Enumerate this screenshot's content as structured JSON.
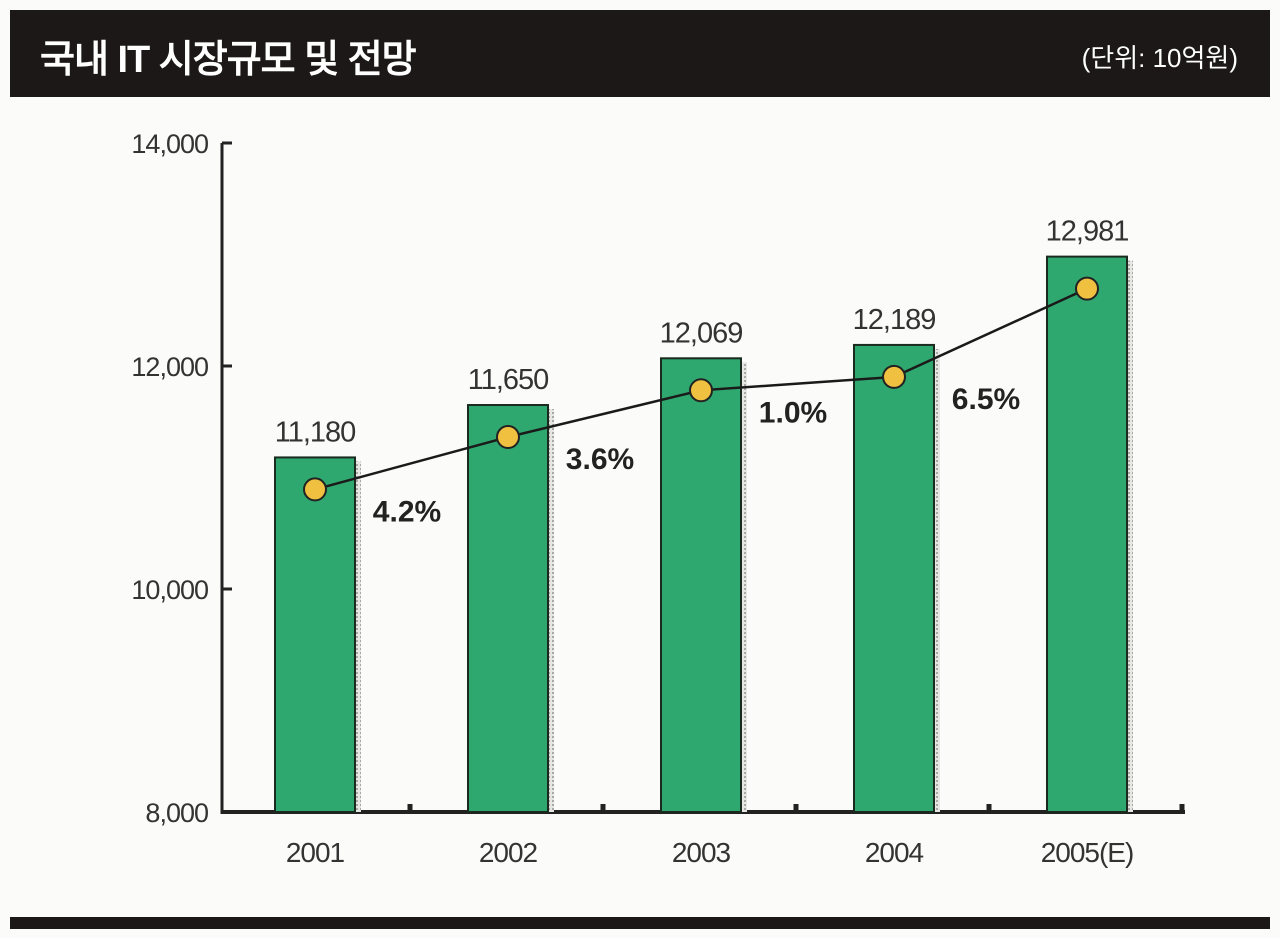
{
  "chart_data": {
    "type": "bar",
    "title": "국내 IT 시장규모 및 전망",
    "unit_label": "(단위: 10억원)",
    "categories": [
      "2001",
      "2002",
      "2003",
      "2004",
      "2005(E)"
    ],
    "values": [
      11180,
      11650,
      12069,
      12189,
      12981
    ],
    "value_labels": [
      "11,180",
      "11,650",
      "12,069",
      "12,189",
      "12,981"
    ],
    "growth_rates": [
      "4.2%",
      "3.6%",
      "1.0%",
      "6.5%"
    ],
    "ylim": [
      8000,
      14000
    ],
    "yticks": [
      8000,
      10000,
      12000,
      14000
    ],
    "ytick_labels": [
      "8,000",
      "10,000",
      "12,000",
      "14,000"
    ],
    "grid": false,
    "colors": {
      "bar": "#2fa870",
      "bar_border": "#1a2a1e",
      "marker": "#f0c040",
      "line": "#1a1a1a",
      "title_bg": "#1c1817"
    }
  }
}
